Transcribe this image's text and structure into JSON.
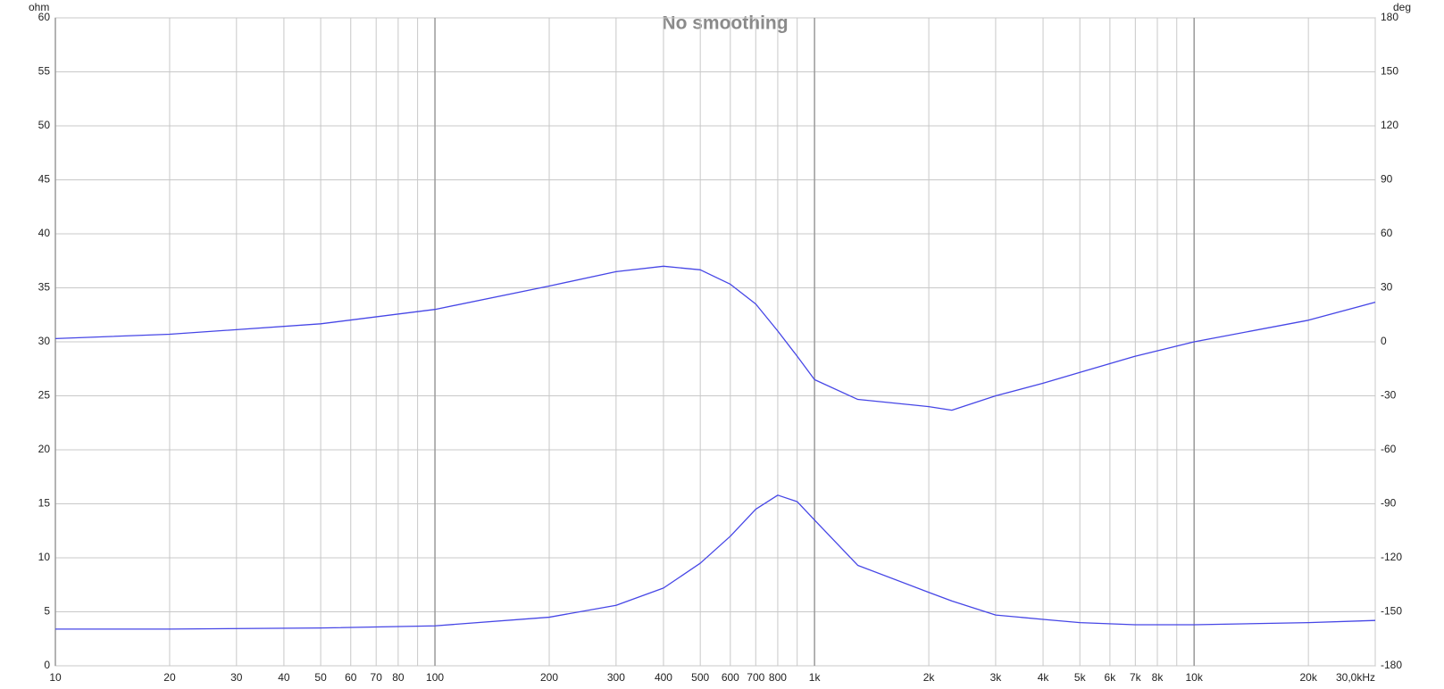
{
  "chart_data": {
    "type": "line",
    "title": "No smoothing",
    "y_label": "ohm",
    "y2_label": "deg",
    "log_x": true,
    "grid": true,
    "x": [
      10,
      20,
      50,
      100,
      200,
      300,
      400,
      500,
      600,
      700,
      800,
      900,
      1000,
      1300,
      2000,
      2300,
      3000,
      4000,
      5000,
      7000,
      10000,
      20000,
      30000
    ],
    "series": [
      {
        "color": "#4646e6",
        "values": [
          3.4,
          3.4,
          3.5,
          3.7,
          4.5,
          5.6,
          7.2,
          9.5,
          12,
          14.5,
          15.8,
          15.2,
          13.5,
          9.3,
          6.8,
          6,
          4.7,
          4.3,
          4,
          3.8,
          3.8,
          4,
          4.2
        ]
      },
      {
        "color": "#4646e6",
        "axis": "y2",
        "values": [
          1.8,
          4.2,
          10,
          18,
          31,
          39,
          42,
          40,
          32,
          21,
          6,
          -8,
          -21,
          -32,
          -36,
          -38,
          -30,
          -23,
          -17,
          -8,
          0,
          12,
          22
        ]
      }
    ],
    "xlim": [
      10,
      30000
    ],
    "xticks": [
      10,
      20,
      30,
      40,
      50,
      60,
      70,
      80,
      {
        "value": 90,
        "label": null
      },
      100,
      200,
      300,
      400,
      500,
      600,
      700,
      800,
      {
        "value": 900,
        "label": null
      },
      {
        "value": 1000,
        "label": "1k"
      },
      {
        "value": 2000,
        "label": "2k"
      },
      {
        "value": 3000,
        "label": "3k"
      },
      {
        "value": 4000,
        "label": "4k"
      },
      {
        "value": 5000,
        "label": "5k"
      },
      {
        "value": 6000,
        "label": "6k"
      },
      {
        "value": 7000,
        "label": "7k"
      },
      {
        "value": 8000,
        "label": "8k"
      },
      {
        "value": 9000,
        "label": null
      },
      {
        "value": 10000,
        "label": "10k"
      },
      {
        "value": 20000,
        "label": "20k"
      },
      {
        "value": 30000,
        "label": "30,0kHz"
      }
    ],
    "ylim": [
      0,
      60
    ],
    "yticks": [
      0,
      5,
      10,
      15,
      20,
      25,
      30,
      35,
      40,
      45,
      50,
      55,
      60
    ],
    "y2lim": [
      -180,
      180
    ],
    "y2ticks": [
      -180,
      -150,
      -120,
      -90,
      -60,
      -30,
      0,
      30,
      60,
      90,
      120,
      150,
      180
    ]
  }
}
